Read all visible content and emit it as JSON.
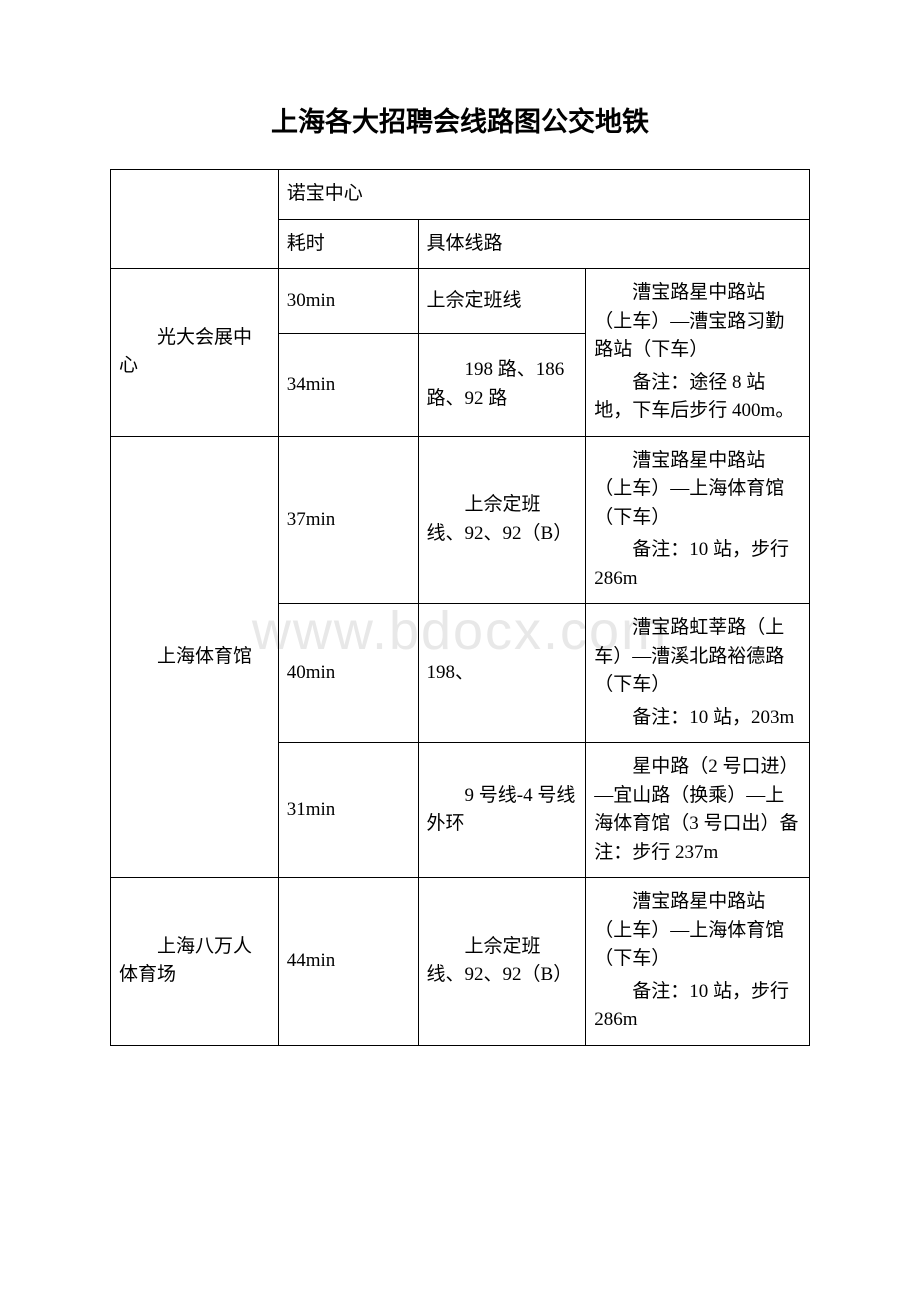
{
  "watermark": "www.bdocx.com",
  "title": "上海各大招聘会线路图公交地铁",
  "header": {
    "center": "诺宝中心",
    "time": "耗时",
    "route": "具体线路"
  },
  "rows": [
    {
      "dest": "光大会展中心",
      "routes": [
        {
          "time": "30min",
          "line": "上佘定班线"
        },
        {
          "time": "34min",
          "line": "198 路、186 路、92 路"
        }
      ],
      "detail": {
        "p1": "漕宝路星中路站（上车）—漕宝路习勤路站（下车）",
        "p2": "备注：途径 8 站地，下车后步行 400m。"
      }
    },
    {
      "dest": "上海体育馆",
      "routes": [
        {
          "time": "37min",
          "line": "上佘定班线、92、92（B）",
          "detail": {
            "p1": "漕宝路星中路站（上车）—上海体育馆（下车）",
            "p2": "备注：10 站，步行 286m"
          }
        },
        {
          "time": "40min",
          "line": "198、",
          "detail": {
            "p1": "漕宝路虹莘路（上车）—漕溪北路裕德路（下车）",
            "p2": "备注：10 站，203m"
          }
        },
        {
          "time": "31min",
          "line": "9 号线-4 号线外环",
          "detail": {
            "p1": "星中路（2 号口进）—宜山路（换乘）—上海体育馆（3 号口出）备注：步行 237m"
          }
        }
      ]
    },
    {
      "dest": "上海八万人体育场",
      "routes": [
        {
          "time": "44min",
          "line": "上佘定班线、92、92（B）",
          "detail": {
            "p1": "漕宝路星中路站（上车）—上海体育馆（下车）",
            "p2": "备注：10 站，步行 286m"
          }
        }
      ]
    }
  ]
}
